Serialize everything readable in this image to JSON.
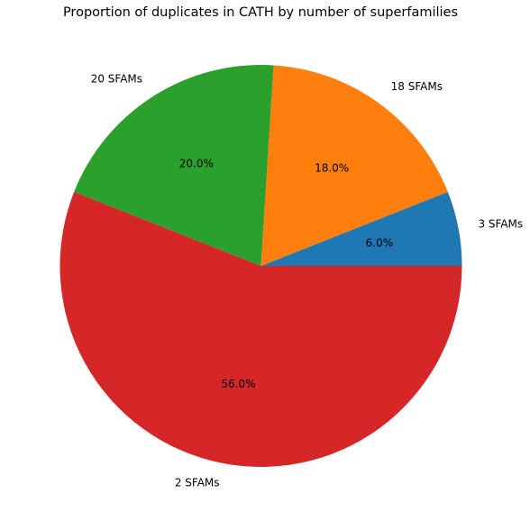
{
  "chart_data": {
    "type": "pie",
    "title": "Proportion of duplicates in CATH by number of superfamilies",
    "slices": [
      {
        "label": "3 SFAMs",
        "value": 6.0,
        "pct_label": "6.0%",
        "color": "#1f77b4"
      },
      {
        "label": "18 SFAMs",
        "value": 18.0,
        "pct_label": "18.0%",
        "color": "#ff7f0e"
      },
      {
        "label": "20 SFAMs",
        "value": 20.0,
        "pct_label": "20.0%",
        "color": "#2ca02c"
      },
      {
        "label": "2 SFAMs",
        "value": 56.0,
        "pct_label": "56.0%",
        "color": "#d62728"
      }
    ],
    "start_angle": 0,
    "direction": "counterclockwise"
  }
}
